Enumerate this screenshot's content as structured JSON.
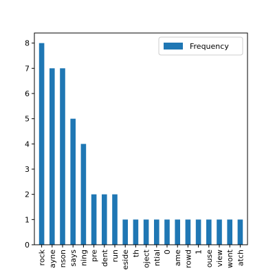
{
  "chart_data": {
    "type": "bar",
    "categories": [
      "rock",
      "ayne",
      "nson",
      "says",
      "ning",
      "pre",
      "dent",
      "run",
      "eside",
      "th",
      "oject",
      "ntial",
      "0",
      "ame",
      "rowd",
      "1",
      "ouse",
      "view",
      "wont",
      "atch"
    ],
    "series": [
      {
        "name": "Frequency",
        "values": [
          8,
          7,
          7,
          5,
          4,
          2,
          2,
          2,
          1,
          1,
          1,
          1,
          1,
          1,
          1,
          1,
          1,
          1,
          1,
          1
        ],
        "color": "#1f77b4"
      }
    ],
    "yticks": [
      "0",
      "1",
      "2",
      "3",
      "4",
      "5",
      "6",
      "7",
      "8"
    ],
    "ylim": [
      0,
      8.4
    ],
    "grid": false,
    "legend_position": "top-right"
  }
}
